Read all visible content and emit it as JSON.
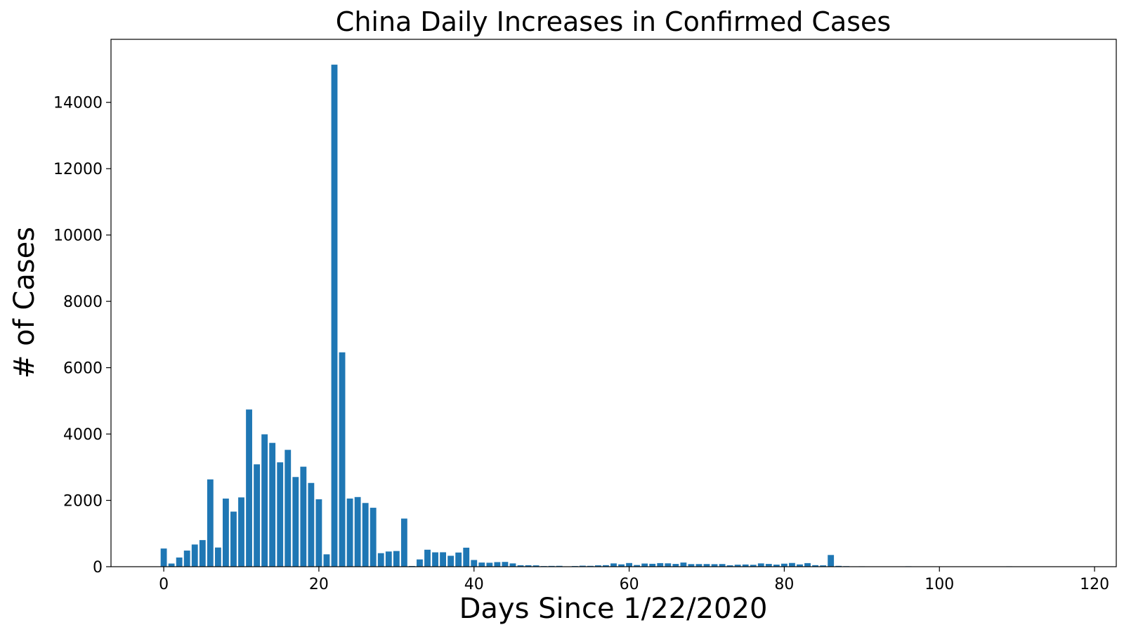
{
  "chart_data": {
    "type": "bar",
    "title": "China Daily Increases in Confirmed Cases",
    "xlabel": "Days Since 1/22/2020",
    "ylabel": "# of Cases",
    "xlim": [
      -6.8,
      122.8
    ],
    "ylim": [
      0,
      15900
    ],
    "x_ticks": [
      0,
      20,
      40,
      60,
      80,
      100,
      120
    ],
    "y_ticks": [
      0,
      2000,
      4000,
      6000,
      8000,
      10000,
      12000,
      14000
    ],
    "grid": false,
    "legend": "none",
    "bar_color": "#1f77b4",
    "x": [
      0,
      1,
      2,
      3,
      4,
      5,
      6,
      7,
      8,
      9,
      10,
      11,
      12,
      13,
      14,
      15,
      16,
      17,
      18,
      19,
      20,
      21,
      22,
      23,
      24,
      25,
      26,
      27,
      28,
      29,
      30,
      31,
      32,
      33,
      34,
      35,
      36,
      37,
      38,
      39,
      40,
      41,
      42,
      43,
      44,
      45,
      46,
      47,
      48,
      49,
      50,
      51,
      52,
      53,
      54,
      55,
      56,
      57,
      58,
      59,
      60,
      61,
      62,
      63,
      64,
      65,
      66,
      67,
      68,
      69,
      70,
      71,
      72,
      73,
      74,
      75,
      76,
      77,
      78,
      79,
      80,
      81,
      82,
      83,
      84,
      85,
      86,
      87,
      88,
      89,
      90,
      91,
      92,
      93,
      94,
      95,
      96,
      97,
      98,
      99,
      100,
      101,
      102,
      103,
      104,
      105,
      106,
      107,
      108,
      109,
      110,
      111,
      112,
      113,
      114,
      115,
      116,
      117
    ],
    "values": [
      548,
      95,
      277,
      486,
      669,
      802,
      2632,
      578,
      2054,
      1661,
      2089,
      4739,
      3086,
      3991,
      3733,
      3147,
      3523,
      2704,
      3015,
      2525,
      2032,
      373,
      15136,
      6463,
      2055,
      2100,
      1921,
      1777,
      408,
      458,
      473,
      1451,
      21,
      219,
      512,
      433,
      435,
      329,
      427,
      573,
      202,
      125,
      119,
      138,
      144,
      99,
      43,
      44,
      40,
      19,
      24,
      26,
      11,
      20,
      31,
      26,
      41,
      46,
      99,
      70,
      110,
      50,
      95,
      87,
      108,
      101,
      83,
      125,
      78,
      79,
      80,
      76,
      80,
      42,
      60,
      66,
      57,
      99,
      83,
      62,
      91,
      112,
      68,
      108,
      46,
      40,
      353,
      25,
      16,
      11,
      12,
      5,
      7,
      8,
      9,
      5,
      13,
      10,
      3,
      7,
      4,
      10,
      6,
      8,
      2,
      3,
      9,
      5,
      4,
      12,
      5,
      8,
      4,
      10,
      6,
      5,
      6,
      3
    ]
  }
}
